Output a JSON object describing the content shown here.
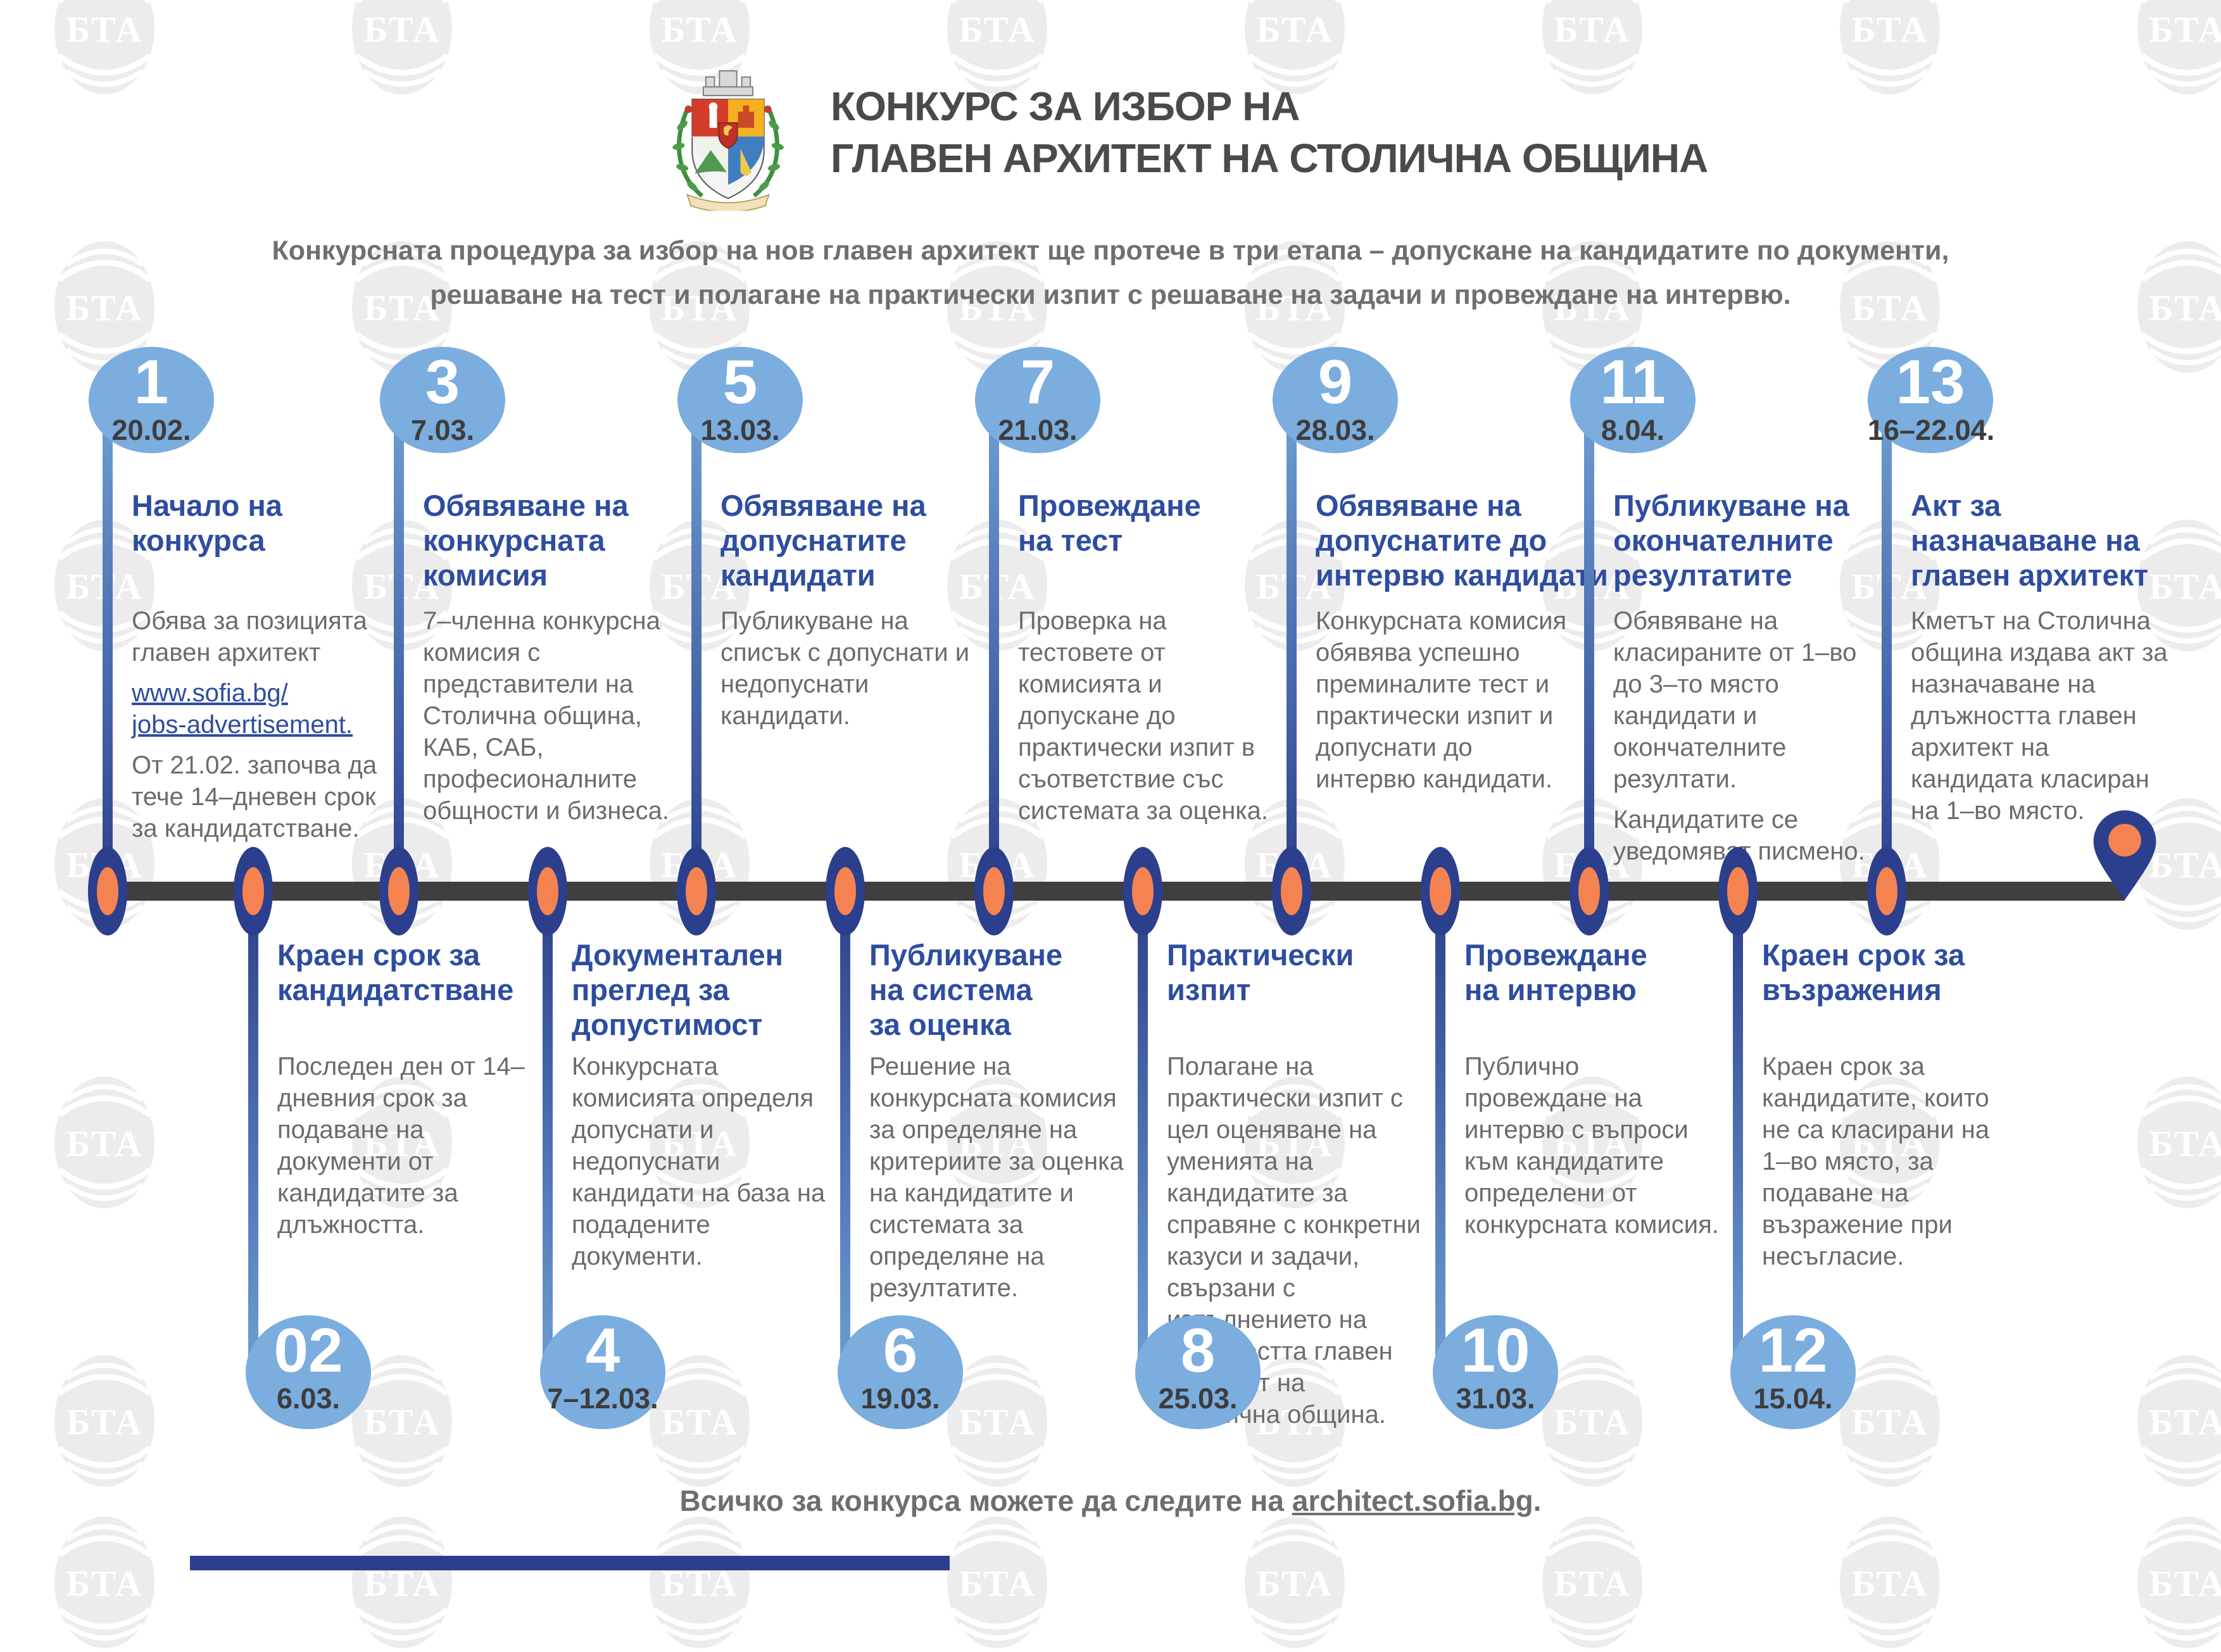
{
  "watermark_text": "БТА",
  "colors": {
    "circle-blue": "#7badde",
    "navy": "#2b3f8c",
    "orange": "#f58352",
    "title-blue": "#2e4da0",
    "link-blue": "#2e4da0",
    "body-gray": "#6b6b6b",
    "date-dark": "#3d3d3d",
    "bar-dark": "#3f3f3f",
    "heading-gray": "#4a4a4a",
    "watermark-gray": "#ececec",
    "stem-light": "#6f9fd4"
  },
  "header": {
    "logo": "sofia-municipality-coat-of-arms",
    "title_line1": "КОНКУРС ЗА ИЗБОР НА",
    "title_line2": "ГЛАВЕН АРХИТЕКТ НА СТОЛИЧНА ОБЩИНА",
    "subtitle_line1": "Конкурсната процедура за избор на нов главен архитект ще протече в три етапа – допускане на кандидатите по документи,",
    "subtitle_line2": "решаване на тест и полагане на практически изпит с решаване на задачи и провеждане на интервю."
  },
  "timeline": {
    "top_items": [
      {
        "number": "1",
        "date": "20.02.",
        "title": "Начало на\nконкурса",
        "body": [
          {
            "text": "Обява за позицията главен архитект"
          },
          {
            "link": "www.sofia.bg/\njobs-advertisement."
          },
          {
            "text": "От 21.02. започва да тече 14–дневен срок за кандидатстване."
          }
        ]
      },
      {
        "number": "3",
        "date": "7.03.",
        "title": "Обявяване на\nконкурсната\nкомисия",
        "body": [
          {
            "text": "7–членна конкурсна комисия с представители на Столична община, КАБ, САБ, професионалните общности и бизнеса."
          }
        ]
      },
      {
        "number": "5",
        "date": "13.03.",
        "title": "Обявяване на\nдопуснатите\nкандидати",
        "body": [
          {
            "text": "Публикуване на списък с допуснати и недопуснати кандидати."
          }
        ]
      },
      {
        "number": "7",
        "date": "21.03.",
        "title": "Провеждане\nна тест",
        "body": [
          {
            "text": "Проверка на тестовете от комисията и допускане до практически изпит в съответствие със системата за оценка."
          }
        ]
      },
      {
        "number": "9",
        "date": "28.03.",
        "title": "Обявяване на\nдопуснатите до\nинтервю кандидати",
        "body": [
          {
            "text": "Конкурсната комисия обявява успешно преминалите тест и практически изпит и допуснати до интервю кандидати."
          }
        ]
      },
      {
        "number": "11",
        "date": "8.04.",
        "title": "Публикуване на\nокончателните\nрезултатите",
        "body": [
          {
            "text": "Обявяване на класираните от 1–во до 3–то място кандидати и окончателните резултати."
          },
          {
            "text": "Кандидатите се уведомяват писмено."
          }
        ]
      },
      {
        "number": "13",
        "date": "16–22.04.",
        "title": "Акт за\nназначаване на\nглавен архитект",
        "body": [
          {
            "text": "Кметът на Столична община издава акт за назначаване на длъжността главен архитект на кандидата класиран на 1–во място."
          }
        ]
      }
    ],
    "bottom_items": [
      {
        "number": "02",
        "date": "6.03.",
        "title": "Краен срок за\nкандидатстване",
        "body": [
          {
            "text": "Последен ден от 14–дневния срок за подаване на документи от кандидатите за длъжността."
          }
        ]
      },
      {
        "number": "4",
        "date": "7–12.03.",
        "title": "Документален\nпреглед за\nдопустимост",
        "body": [
          {
            "text": "Конкурсната комисията определя допуснати и недопуснати кандидати на база на подадените документи."
          }
        ]
      },
      {
        "number": "6",
        "date": "19.03.",
        "title": "Публикуване\nна система\nза оценка",
        "body": [
          {
            "text": "Решение на конкурсната комисия за определяне на критериите за оценка на кандидатите и системата за определяне на резултатите."
          }
        ]
      },
      {
        "number": "8",
        "date": "25.03.",
        "title": "Практически\nизпит",
        "body": [
          {
            "text": "Полагане на практически изпит с цел оценяване на уменията на кандидатите за справяне с конкретни казуси и задачи, свързани с изпълнението на длъжността главен архитект на Столична община."
          }
        ]
      },
      {
        "number": "10",
        "date": "31.03.",
        "title": "Провеждане\nна интервю",
        "body": [
          {
            "text": "Публично провеждане на интервю с въпроси към кандидатите определени от конкурсната комисия."
          }
        ]
      },
      {
        "number": "12",
        "date": "15.04.",
        "title": "Краен срок за\nвъзражения",
        "body": [
          {
            "text": "Краен срок за кандидатите, които не са класирани на 1–во място, за подаване на възражение при несъгласие."
          }
        ]
      }
    ]
  },
  "footer": {
    "prefix": "Всичко за конкурса можете да следите на ",
    "link": "architect.sofia.bg",
    "suffix": "."
  }
}
